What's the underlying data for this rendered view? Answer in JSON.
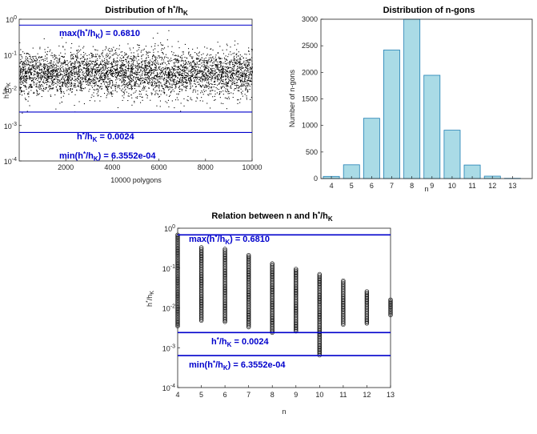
{
  "caption": "",
  "chart_data": [
    {
      "type": "scatter",
      "title": "Distribution of h*/hK",
      "xlabel": "10000 polygons",
      "ylabel": "h*/hK",
      "xlim": [
        1,
        10000
      ],
      "ylim": [
        0.0001,
        1
      ],
      "yscale": "log",
      "xticks": [
        "2000",
        "4000",
        "6000",
        "8000",
        "10000"
      ],
      "yticks": [
        "10^0",
        "10^-1",
        "10^-2",
        "10^-3",
        "10^-4"
      ],
      "n_points": 10000,
      "point_band": {
        "median": 0.03,
        "q_low": 0.015,
        "q_high": 0.05,
        "min": 0.00063552,
        "max": 0.681
      },
      "reference_lines": [
        {
          "value": 0.681,
          "label": "max(h*/hK) = 0.6810",
          "color": "#0000cc"
        },
        {
          "value": 0.0024,
          "label": "h*/hK = 0.0024",
          "color": "#0000cc"
        },
        {
          "value": 0.00063552,
          "label": "min(h*/hK) = 6.3552e-04",
          "color": "#0000cc"
        }
      ],
      "grid": false
    },
    {
      "type": "bar",
      "title": "Distribution of n-gons",
      "xlabel": "n",
      "ylabel": "Number of n-gons",
      "categories": [
        "4",
        "5",
        "6",
        "7",
        "8",
        "9",
        "10",
        "11",
        "12",
        "13"
      ],
      "values": [
        40,
        260,
        1135,
        2420,
        3005,
        1945,
        910,
        255,
        45,
        5
      ],
      "ylim": [
        0,
        3000
      ],
      "yticks": [
        "0",
        "500",
        "1000",
        "1500",
        "2000",
        "2500",
        "3000"
      ],
      "bar_color": "#aadbe6",
      "edge_color": "#1f7fb4",
      "grid": false
    },
    {
      "type": "scatter",
      "title": "Relation between n and h*/hK",
      "xlabel": "n",
      "ylabel": "h*/hK",
      "xlim": [
        4,
        13
      ],
      "ylim": [
        0.0001,
        1
      ],
      "yscale": "log",
      "xticks": [
        "4",
        "5",
        "6",
        "7",
        "8",
        "9",
        "10",
        "11",
        "12",
        "13"
      ],
      "yticks": [
        "10^0",
        "10^-1",
        "10^-2",
        "10^-3",
        "10^-4"
      ],
      "columns": [
        {
          "n": 4,
          "min": 0.0035,
          "max": 0.681
        },
        {
          "n": 5,
          "min": 0.0048,
          "max": 0.33
        },
        {
          "n": 6,
          "min": 0.0045,
          "max": 0.3
        },
        {
          "n": 7,
          "min": 0.0033,
          "max": 0.21
        },
        {
          "n": 8,
          "min": 0.0024,
          "max": 0.13
        },
        {
          "n": 9,
          "min": 0.0026,
          "max": 0.095
        },
        {
          "n": 10,
          "min": 0.00065,
          "max": 0.07
        },
        {
          "n": 11,
          "min": 0.0038,
          "max": 0.048
        },
        {
          "n": 12,
          "min": 0.0041,
          "max": 0.026
        },
        {
          "n": 13,
          "min": 0.0066,
          "max": 0.016
        }
      ],
      "marker": "circle",
      "reference_lines": [
        {
          "value": 0.681,
          "label": "max(h*/hK) = 0.6810",
          "color": "#0000cc"
        },
        {
          "value": 0.0024,
          "label": "h*/hK = 0.0024",
          "color": "#0000cc"
        },
        {
          "value": 0.00063552,
          "label": "min(h*/hK) = 6.3552e-04",
          "color": "#0000cc"
        }
      ],
      "grid": false
    }
  ]
}
